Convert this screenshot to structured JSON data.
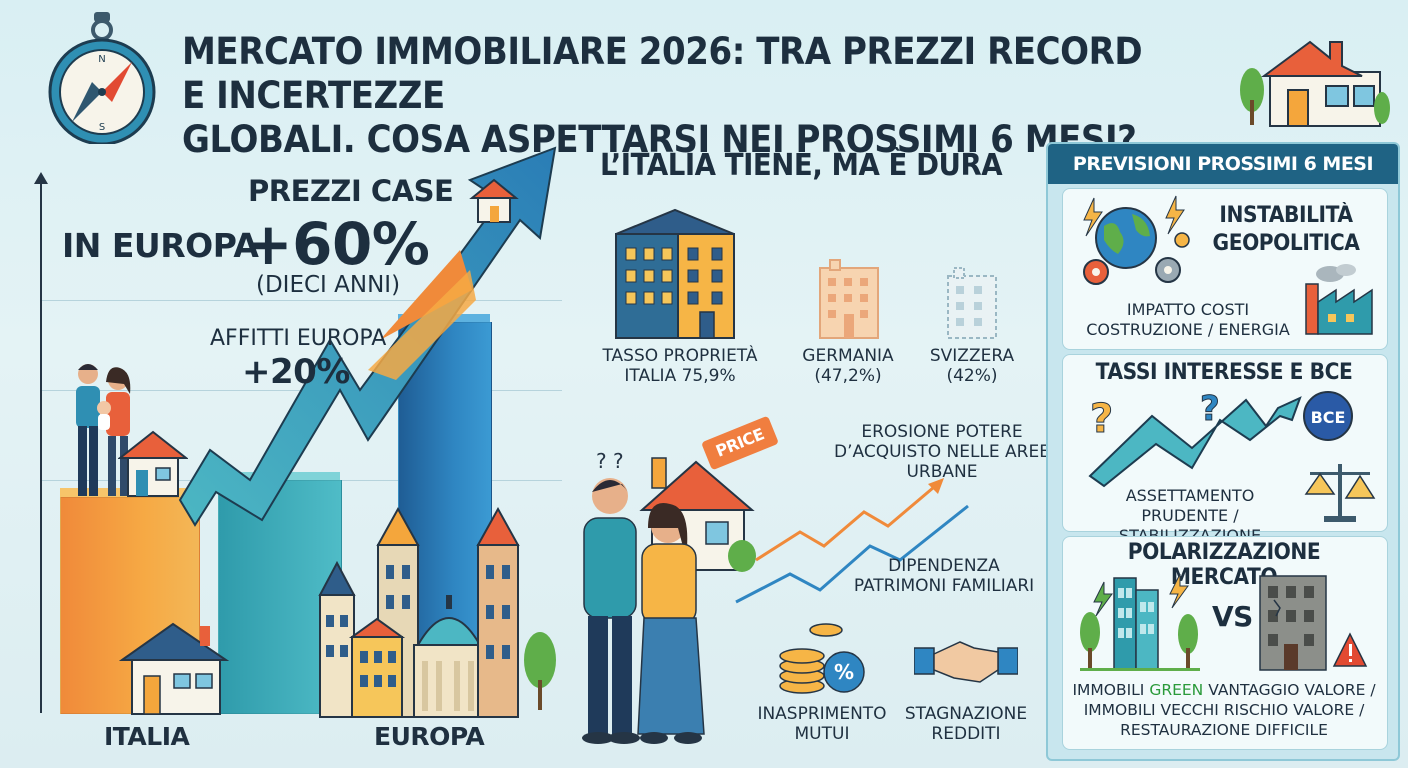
{
  "title": {
    "line1": "MERCATO IMMOBILIARE 2026: TRA PREZZI RECORD E INCERTEZZE",
    "line2": "GLOBALI. COSA ASPETTARSI NEI PROSSIMI 6 MESI?"
  },
  "compass": {
    "n": "N",
    "s": "S"
  },
  "left": {
    "prezzi_label": "PREZZI CASE",
    "in_europa": "IN EUROPA",
    "prezzi_value": "+60%",
    "dieci_anni": "(DIECI ANNI)",
    "affitti_label": "AFFITTI EUROPA",
    "affitti_value": "+20%",
    "axis_italia": "ITALIA",
    "axis_europa": "EUROPA"
  },
  "middle": {
    "heading": "L’ITALIA TIENE, MA È DURA",
    "italia_line1": "TASSO PROPRIETÀ",
    "italia_line2": "ITALIA 75,9%",
    "germania_line1": "GERMANIA",
    "germania_line2": "(47,2%)",
    "svizzera_line1": "SVIZZERA",
    "svizzera_line2": "(42%)",
    "price_tag": "PRICE",
    "erosione_line1": "EROSIONE POTERE",
    "erosione_line2": "D’ACQUISTO NELLE AREE URBANE",
    "dipendenza_line1": "DIPENDENZA",
    "dipendenza_line2": "PATRIMONI FAMILIARI",
    "mutui_line1": "INASPRIMENTO",
    "mutui_line2": "MUTUI",
    "redditi_line1": "STAGNAZIONE",
    "redditi_line2": "REDDITI",
    "percent_symbol": "%",
    "question": "? ?"
  },
  "panel": {
    "header": "PREVISIONI PROSSIMI 6 MESI",
    "card1_title_line1": "INSTABILITÀ",
    "card1_title_line2": "GEOPOLITICA",
    "card1_text_line1": "IMPATTO COSTI",
    "card1_text_line2": "COSTRUZIONE / ENERGIA",
    "card2_title": "TASSI INTERESSE E BCE",
    "card2_bce": "BCE",
    "card2_text_line1": "ASSETTAMENTO",
    "card2_text_line2": "PRUDENTE / STABILIZZAZIONE",
    "card3_title": "POLARIZZAZIONE MERCATO",
    "card3_vs": "VS",
    "card3_text_line1_a": "IMMOBILI ",
    "card3_text_line1_green": "GREEN",
    "card3_text_line1_b": " VANTAGGIO VALORE /",
    "card3_text_line2": "IMMOBILI VECCHI RISCHIO VALORE /",
    "card3_text_line3": "RESTAURAZIONE DIFFICILE"
  },
  "colors": {
    "dark_teal": "#1f6384",
    "orange": "#f08a3a",
    "teal": "#2f9bab",
    "blue": "#1f5d95",
    "green": "#2a9a3a"
  }
}
